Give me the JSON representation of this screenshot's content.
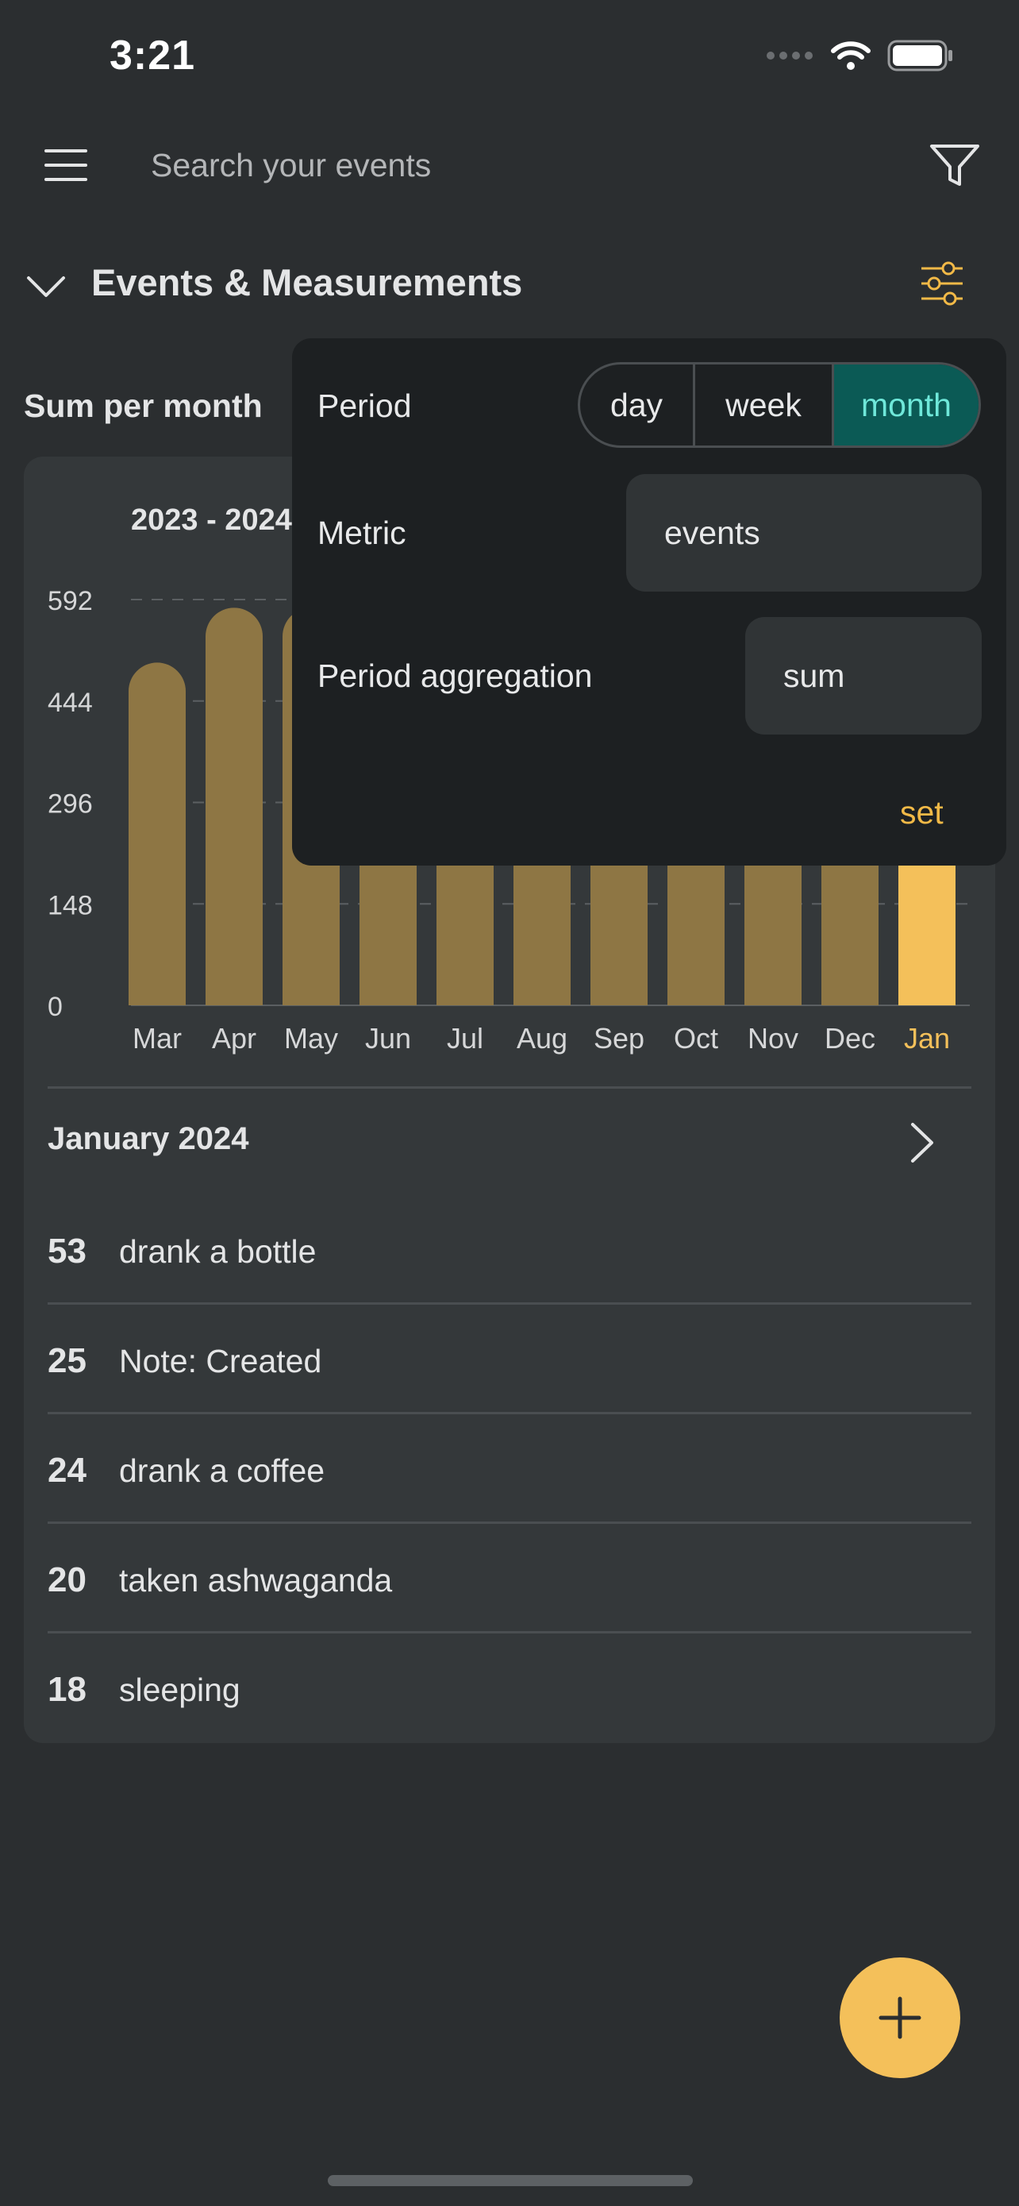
{
  "status_bar": {
    "time": "3:21"
  },
  "header": {
    "search_placeholder": "Search your events"
  },
  "section": {
    "title": "Events & Measurements"
  },
  "summary_label": "Sum per month",
  "chart_data": {
    "type": "bar",
    "title": "2023 - 2024",
    "categories": [
      "Mar",
      "Apr",
      "May",
      "Jun",
      "Jul",
      "Aug",
      "Sep",
      "Oct",
      "Nov",
      "Dec",
      "Jan"
    ],
    "values": [
      500,
      580,
      580,
      560,
      560,
      560,
      560,
      560,
      560,
      560,
      560
    ],
    "highlight_index": 10,
    "y_ticks": [
      "592",
      "444",
      "296",
      "148",
      "0"
    ],
    "ylim": [
      0,
      592
    ],
    "bar_color": "#8e7644",
    "highlight_color": "#f4c05a"
  },
  "month_list": {
    "title": "January 2024",
    "items": [
      {
        "count": "53",
        "label": "drank a bottle"
      },
      {
        "count": "25",
        "label": "Note: Created"
      },
      {
        "count": "24",
        "label": "drank a coffee"
      },
      {
        "count": "20",
        "label": "taken ashwaganda"
      },
      {
        "count": "18",
        "label": "sleeping"
      }
    ]
  },
  "settings_panel": {
    "period_label": "Period",
    "period_options": [
      "day",
      "week",
      "month"
    ],
    "period_selected": "month",
    "metric_label": "Metric",
    "metric_value": "events",
    "aggregation_label": "Period aggregation",
    "aggregation_value": "sum",
    "set_label": "set"
  },
  "colors": {
    "accent": "#f4c05a",
    "selected_segment_bg": "#0b5a55",
    "selected_segment_text": "#6fe8da"
  },
  "icons": {
    "menu": "hamburger-icon",
    "filter": "filter-icon",
    "collapse": "chevron-down-icon",
    "settings": "sliders-icon",
    "next": "chevron-right-icon",
    "add": "plus-icon"
  }
}
